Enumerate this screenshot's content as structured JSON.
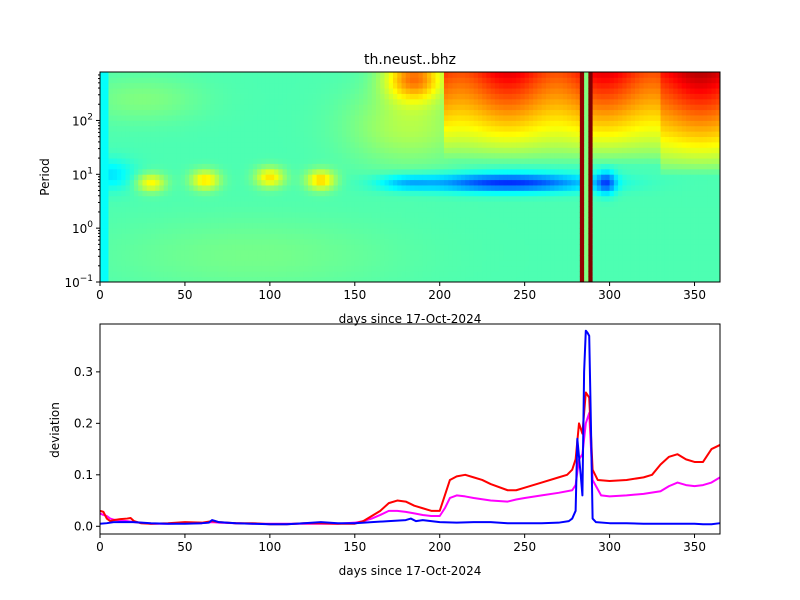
{
  "chart_data": [
    {
      "type": "heatmap",
      "title": "th.neust..bhz",
      "xlabel": "days since 17-Oct-2024",
      "ylabel": "Period",
      "xlim": [
        0,
        365
      ],
      "ylim_log10": [
        -1,
        2.9
      ],
      "yscale": "log",
      "x_ticks": [
        0,
        50,
        100,
        150,
        200,
        250,
        300,
        350
      ],
      "x_tick_labels": [
        "0",
        "50",
        "100",
        "150",
        "200",
        "250",
        "300",
        "350"
      ],
      "y_ticks": [
        {
          "exp": -1,
          "label_base": "10",
          "label_exp": "−1"
        },
        {
          "exp": 0,
          "label_base": "10",
          "label_exp": "0"
        },
        {
          "exp": 1,
          "label_base": "10",
          "label_exp": "1"
        },
        {
          "exp": 2,
          "label_base": "10",
          "label_exp": "2"
        }
      ],
      "colormap": "jet",
      "value_range": [
        0,
        1
      ],
      "background_value": 0.45,
      "day_columns": [
        {
          "start": 0,
          "end": 6,
          "value": 0.38
        },
        {
          "start": 282,
          "end": 285,
          "value": 0.98
        },
        {
          "start": 285,
          "end": 287,
          "value": 0.5
        },
        {
          "start": 287,
          "end": 291,
          "value": 1.0
        }
      ],
      "blobs": [
        {
          "day": 6,
          "log_period": 1.0,
          "sd_day": 10,
          "sd_log": 0.2,
          "amp": -0.1
        },
        {
          "day": 30,
          "log_period": 0.85,
          "sd_day": 6,
          "sd_log": 0.12,
          "amp": 0.18
        },
        {
          "day": 62,
          "log_period": 0.9,
          "sd_day": 6,
          "sd_log": 0.13,
          "amp": 0.2
        },
        {
          "day": 100,
          "log_period": 0.95,
          "sd_day": 6,
          "sd_log": 0.13,
          "amp": 0.2
        },
        {
          "day": 130,
          "log_period": 0.9,
          "sd_day": 6,
          "sd_log": 0.13,
          "amp": 0.22
        },
        {
          "day": 25,
          "log_period": 2.4,
          "sd_day": 25,
          "sd_log": 0.3,
          "amp": 0.05
        },
        {
          "day": 185,
          "log_period": 2.8,
          "sd_day": 12,
          "sd_log": 0.3,
          "amp": 0.3
        },
        {
          "day": 182,
          "log_period": 1.9,
          "sd_day": 25,
          "sd_log": 0.5,
          "amp": 0.1
        },
        {
          "day": 240,
          "log_period": 0.85,
          "sd_day": 35,
          "sd_log": 0.12,
          "amp": -0.28
        },
        {
          "day": 180,
          "log_period": 0.85,
          "sd_day": 12,
          "sd_log": 0.1,
          "amp": -0.1
        },
        {
          "day": 298,
          "log_period": 0.85,
          "sd_day": 4,
          "sd_log": 0.15,
          "amp": -0.2
        },
        {
          "day": 90,
          "log_period": -0.5,
          "sd_day": 60,
          "sd_log": 0.5,
          "amp": 0.04
        }
      ],
      "high_period_regions": [
        {
          "start": 203,
          "end": 365,
          "top_value": 0.85,
          "base_log": 1.2
        },
        {
          "start": 330,
          "end": 365,
          "top_value": 0.9,
          "base_log": 1.0
        }
      ]
    },
    {
      "type": "line",
      "xlabel": "days since 17-Oct-2024",
      "ylabel": "deviation",
      "xlim": [
        0,
        365
      ],
      "ylim": [
        -0.015,
        0.393
      ],
      "x_ticks": [
        0,
        50,
        100,
        150,
        200,
        250,
        300,
        350
      ],
      "x_tick_labels": [
        "0",
        "50",
        "100",
        "150",
        "200",
        "250",
        "300",
        "350"
      ],
      "y_ticks": [
        0.0,
        0.1,
        0.2,
        0.3
      ],
      "y_tick_labels": [
        "0.0",
        "0.1",
        "0.2",
        "0.3"
      ],
      "series": [
        {
          "name": "magenta",
          "color": "#ff00ff",
          "x": [
            0,
            2,
            4,
            6,
            8,
            12,
            16,
            20,
            30,
            40,
            50,
            60,
            66,
            70,
            80,
            90,
            100,
            110,
            120,
            130,
            140,
            150,
            155,
            160,
            165,
            170,
            175,
            180,
            185,
            190,
            195,
            200,
            203,
            206,
            210,
            215,
            220,
            230,
            240,
            245,
            250,
            260,
            270,
            278,
            280,
            282,
            284,
            286,
            288,
            290,
            295,
            300,
            310,
            320,
            330,
            335,
            340,
            345,
            350,
            355,
            360,
            365
          ],
          "y": [
            0.025,
            0.022,
            0.02,
            0.015,
            0.013,
            0.011,
            0.01,
            0.008,
            0.005,
            0.005,
            0.006,
            0.006,
            0.008,
            0.007,
            0.006,
            0.005,
            0.005,
            0.005,
            0.005,
            0.005,
            0.005,
            0.007,
            0.01,
            0.015,
            0.022,
            0.03,
            0.03,
            0.028,
            0.025,
            0.022,
            0.02,
            0.02,
            0.035,
            0.055,
            0.06,
            0.058,
            0.055,
            0.05,
            0.048,
            0.052,
            0.055,
            0.06,
            0.065,
            0.07,
            0.08,
            0.13,
            0.14,
            0.2,
            0.22,
            0.09,
            0.06,
            0.058,
            0.06,
            0.063,
            0.068,
            0.078,
            0.085,
            0.08,
            0.078,
            0.08,
            0.085,
            0.095
          ]
        },
        {
          "name": "red",
          "color": "#ff0000",
          "x": [
            0,
            2,
            4,
            6,
            8,
            12,
            16,
            18,
            20,
            24,
            30,
            40,
            50,
            60,
            66,
            70,
            80,
            90,
            100,
            110,
            120,
            130,
            140,
            150,
            155,
            160,
            165,
            170,
            175,
            180,
            185,
            190,
            195,
            200,
            203,
            206,
            210,
            215,
            220,
            225,
            230,
            240,
            245,
            250,
            260,
            270,
            275,
            278,
            280,
            282,
            284,
            286,
            288,
            290,
            293,
            300,
            310,
            320,
            325,
            330,
            335,
            340,
            345,
            350,
            355,
            360,
            365
          ],
          "y": [
            0.03,
            0.028,
            0.015,
            0.01,
            0.012,
            0.014,
            0.015,
            0.016,
            0.01,
            0.006,
            0.005,
            0.006,
            0.008,
            0.007,
            0.01,
            0.008,
            0.006,
            0.006,
            0.004,
            0.004,
            0.006,
            0.006,
            0.005,
            0.005,
            0.01,
            0.02,
            0.03,
            0.045,
            0.05,
            0.048,
            0.04,
            0.035,
            0.03,
            0.03,
            0.06,
            0.09,
            0.097,
            0.1,
            0.095,
            0.09,
            0.082,
            0.07,
            0.07,
            0.075,
            0.085,
            0.095,
            0.1,
            0.11,
            0.13,
            0.2,
            0.18,
            0.26,
            0.25,
            0.11,
            0.09,
            0.088,
            0.09,
            0.095,
            0.1,
            0.12,
            0.135,
            0.14,
            0.13,
            0.125,
            0.125,
            0.15,
            0.158
          ]
        },
        {
          "name": "blue",
          "color": "#0000ff",
          "x": [
            0,
            4,
            8,
            12,
            20,
            30,
            40,
            50,
            60,
            64,
            66,
            68,
            70,
            80,
            90,
            100,
            110,
            120,
            130,
            140,
            150,
            160,
            170,
            180,
            183,
            186,
            190,
            200,
            210,
            220,
            230,
            240,
            250,
            260,
            270,
            276,
            278,
            280,
            281,
            283,
            284,
            285,
            286,
            287,
            288,
            289,
            290,
            292,
            300,
            310,
            320,
            330,
            340,
            350,
            355,
            360,
            365
          ],
          "y": [
            0.005,
            0.006,
            0.008,
            0.008,
            0.008,
            0.006,
            0.005,
            0.005,
            0.006,
            0.007,
            0.012,
            0.01,
            0.008,
            0.006,
            0.005,
            0.004,
            0.004,
            0.006,
            0.008,
            0.006,
            0.006,
            0.008,
            0.01,
            0.012,
            0.015,
            0.01,
            0.012,
            0.008,
            0.007,
            0.008,
            0.008,
            0.006,
            0.006,
            0.006,
            0.007,
            0.01,
            0.015,
            0.03,
            0.17,
            0.1,
            0.06,
            0.3,
            0.38,
            0.376,
            0.37,
            0.2,
            0.015,
            0.008,
            0.006,
            0.006,
            0.005,
            0.005,
            0.005,
            0.005,
            0.004,
            0.004,
            0.006
          ]
        }
      ]
    }
  ]
}
